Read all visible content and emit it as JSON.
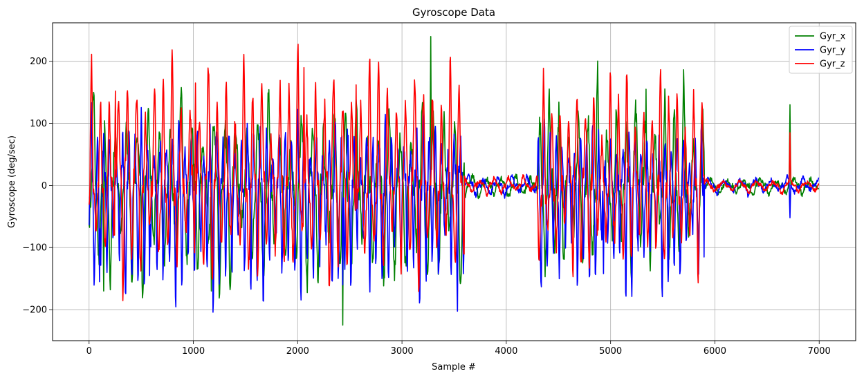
{
  "chart_data": {
    "type": "line",
    "title": "Gyroscope Data",
    "xlabel": "Sample #",
    "ylabel": "Gyroscope (deg/sec)",
    "xlim": [
      -350,
      7350
    ],
    "ylim": [
      -250,
      262
    ],
    "x_ticks": [
      0,
      1000,
      2000,
      3000,
      4000,
      5000,
      6000,
      7000
    ],
    "y_ticks": [
      -200,
      -100,
      0,
      100,
      200
    ],
    "x_tick_labels": [
      "0",
      "1000",
      "2000",
      "3000",
      "4000",
      "5000",
      "6000",
      "7000"
    ],
    "y_tick_labels": [
      "−200",
      "−100",
      "0",
      "100",
      "200"
    ],
    "grid": true,
    "legend_position": "top-right",
    "sample_count": 7000,
    "series": [
      {
        "name": "Gyr_x",
        "color": "#008000",
        "segments": [
          {
            "x0": 0,
            "x1": 3600,
            "period": 105,
            "amp_pos": 95,
            "amp_neg": 120,
            "noise": 20
          },
          {
            "x0": 3600,
            "x1": 4300,
            "period": 140,
            "amp_pos": 12,
            "amp_neg": 15,
            "noise": 5
          },
          {
            "x0": 4300,
            "x1": 5900,
            "period": 92,
            "amp_pos": 110,
            "amp_neg": 95,
            "noise": 20
          },
          {
            "x0": 5900,
            "x1": 7000,
            "period": 160,
            "amp_pos": 10,
            "amp_neg": 10,
            "noise": 4
          }
        ],
        "peaks": [
          [
            3275,
            240
          ],
          [
            2430,
            -225
          ],
          [
            140,
            -170
          ],
          [
            1170,
            -170
          ],
          [
            6720,
            130
          ],
          [
            5340,
            155
          ]
        ]
      },
      {
        "name": "Gyr_y",
        "color": "#0000ff",
        "segments": [
          {
            "x0": 0,
            "x1": 3600,
            "period": 60,
            "amp_pos": 70,
            "amp_neg": 130,
            "noise": 20
          },
          {
            "x0": 3600,
            "x1": 4300,
            "period": 140,
            "amp_pos": 14,
            "amp_neg": 12,
            "noise": 5
          },
          {
            "x0": 4300,
            "x1": 5900,
            "period": 58,
            "amp_pos": 65,
            "amp_neg": 120,
            "noise": 18
          },
          {
            "x0": 5900,
            "x1": 7000,
            "period": 150,
            "amp_pos": 10,
            "amp_neg": 10,
            "noise": 4
          }
        ],
        "peaks": [
          [
            100,
            -155
          ],
          [
            580,
            -145
          ],
          [
            2430,
            -160
          ],
          [
            4930,
            -142
          ],
          [
            6720,
            -52
          ]
        ]
      },
      {
        "name": "Gyr_z",
        "color": "#ff0000",
        "segments": [
          {
            "x0": 0,
            "x1": 3600,
            "period": 86,
            "amp_pos": 140,
            "amp_neg": 100,
            "noise": 15
          },
          {
            "x0": 3600,
            "x1": 4300,
            "period": 140,
            "amp_pos": 12,
            "amp_neg": 10,
            "noise": 4
          },
          {
            "x0": 4300,
            "x1": 5900,
            "period": 80,
            "amp_pos": 125,
            "amp_neg": 95,
            "noise": 15
          },
          {
            "x0": 5900,
            "x1": 7000,
            "period": 160,
            "amp_pos": 8,
            "amp_neg": 8,
            "noise": 3
          }
        ],
        "peaks": [
          [
            2060,
            190
          ],
          [
            1020,
            165
          ],
          [
            2560,
            162
          ],
          [
            250,
            152
          ],
          [
            6720,
            85
          ]
        ]
      }
    ]
  }
}
